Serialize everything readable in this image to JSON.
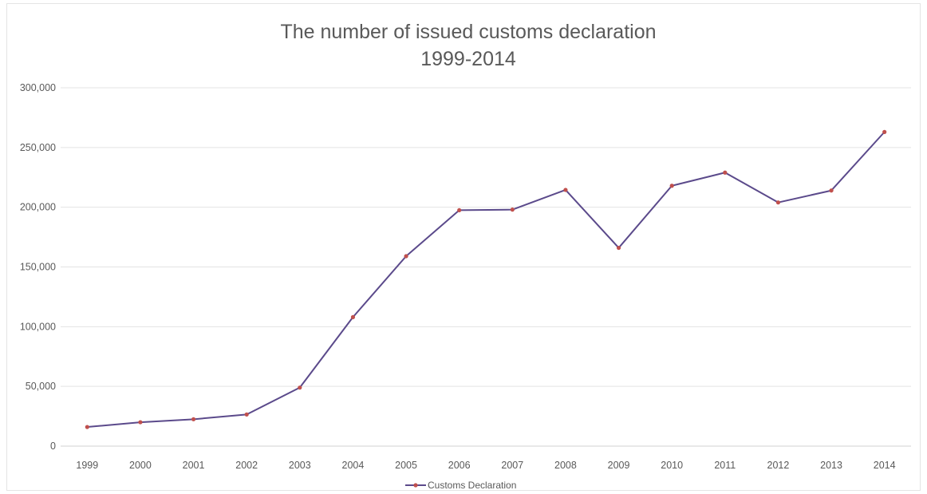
{
  "chart_data": {
    "type": "line",
    "title": "The number of issued customs declaration",
    "subtitle": "1999-2014",
    "xlabel": "",
    "ylabel": "",
    "categories": [
      "1999",
      "2000",
      "2001",
      "2002",
      "2003",
      "2004",
      "2005",
      "2006",
      "2007",
      "2008",
      "2009",
      "2010",
      "2011",
      "2012",
      "2013",
      "2014"
    ],
    "series": [
      {
        "name": "Customs Declaration",
        "values": [
          16000,
          20000,
          22500,
          26500,
          49000,
          108000,
          159000,
          197500,
          198000,
          214500,
          166000,
          218000,
          229000,
          204000,
          214000,
          263000
        ],
        "color": "#5b4a8b",
        "marker_color": "#c0504d"
      }
    ],
    "ylim": [
      0,
      300000
    ],
    "yticks": [
      0,
      50000,
      100000,
      150000,
      200000,
      250000,
      300000
    ],
    "ytick_labels": [
      "0",
      "50,000",
      "100,000",
      "150,000",
      "200,000",
      "250,000",
      "300,000"
    ],
    "grid": true,
    "legend": "bottom"
  }
}
